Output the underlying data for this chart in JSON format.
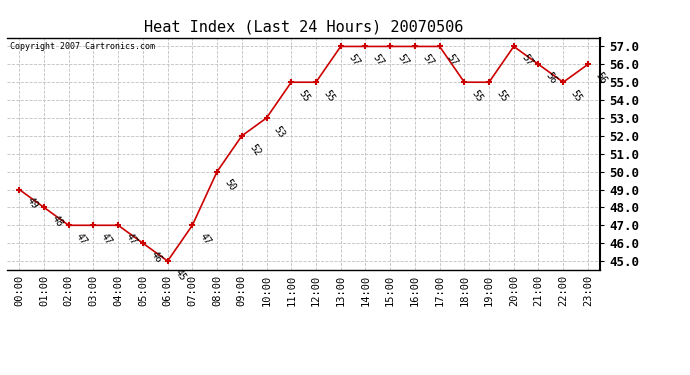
{
  "title": "Heat Index (Last 24 Hours) 20070506",
  "copyright": "Copyright 2007 Cartronics.com",
  "hours": [
    0,
    1,
    2,
    3,
    4,
    5,
    6,
    7,
    8,
    9,
    10,
    11,
    12,
    13,
    14,
    15,
    16,
    17,
    18,
    19,
    20,
    21,
    22,
    23
  ],
  "values": [
    49,
    48,
    47,
    47,
    47,
    46,
    45,
    47,
    50,
    52,
    53,
    55,
    55,
    57,
    57,
    57,
    57,
    57,
    55,
    55,
    57,
    56,
    55,
    56
  ],
  "xlabels": [
    "00:00",
    "01:00",
    "02:00",
    "03:00",
    "04:00",
    "05:00",
    "06:00",
    "07:00",
    "08:00",
    "09:00",
    "10:00",
    "11:00",
    "12:00",
    "13:00",
    "14:00",
    "15:00",
    "16:00",
    "17:00",
    "18:00",
    "19:00",
    "20:00",
    "21:00",
    "22:00",
    "23:00"
  ],
  "ylim": [
    44.5,
    57.5
  ],
  "yticks": [
    45.0,
    46.0,
    47.0,
    48.0,
    49.0,
    50.0,
    51.0,
    52.0,
    53.0,
    54.0,
    55.0,
    56.0,
    57.0
  ],
  "line_color": "#cc0000",
  "marker_color": "#cc0000",
  "bg_color": "#ffffff",
  "grid_color": "#c0c0c0",
  "title_fontsize": 11,
  "label_fontsize": 7.5,
  "annotation_fontsize": 7,
  "figsize": [
    6.9,
    3.75
  ],
  "dpi": 100
}
